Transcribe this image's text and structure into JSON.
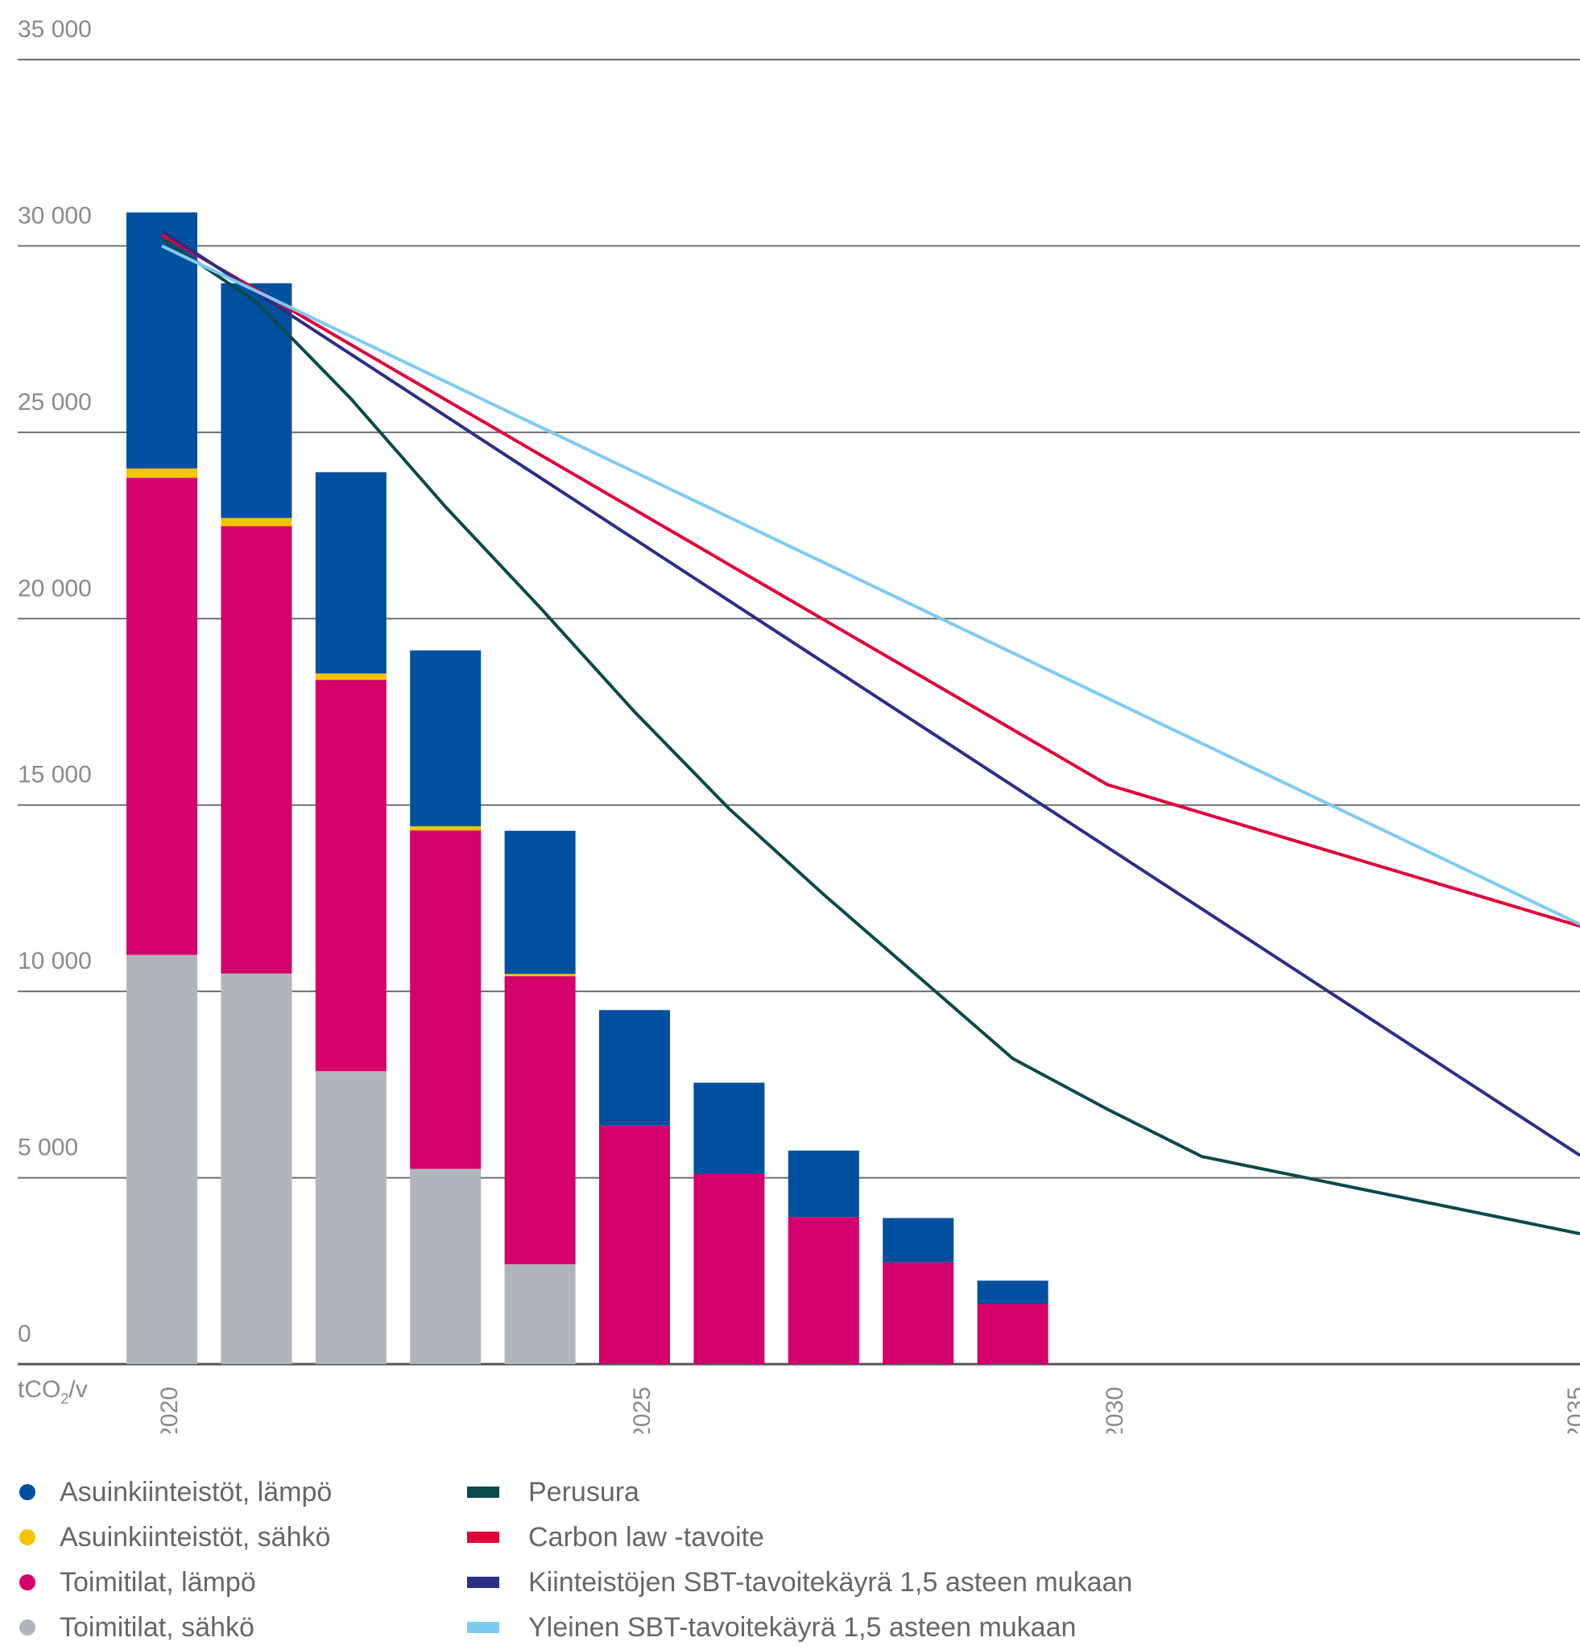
{
  "chart_data": {
    "type": "bar",
    "stacked": true,
    "ylabel": "tCO",
    "ylabel_subscript": "2",
    "ylabel_suffix": "/v",
    "ylim": [
      0,
      35000
    ],
    "y_ticks": [
      0,
      5000,
      10000,
      15000,
      20000,
      25000,
      30000,
      35000
    ],
    "y_tick_labels": [
      "0",
      "5 000",
      "10 000",
      "15 000",
      "20 000",
      "25 000",
      "30 000",
      "35 000"
    ],
    "xlim": [
      2020,
      2035
    ],
    "x_ticks": [
      2020,
      2025,
      2030,
      2035
    ],
    "x_tick_labels": [
      "2020",
      "2025",
      "2030",
      "2035"
    ],
    "grid": true,
    "categories": [
      2020,
      2021,
      2022,
      2023,
      2024,
      2025,
      2026,
      2027,
      2028,
      2029
    ],
    "series": [
      {
        "name": "Toimitilat, sähkö",
        "color": "#b0b5bb",
        "values": [
          10980,
          10480,
          7860,
          5240,
          2680,
          0,
          0,
          0,
          0,
          0
        ]
      },
      {
        "name": "Toimitilat, lämpö",
        "color": "#d4006b",
        "values": [
          12800,
          12000,
          10500,
          9080,
          7730,
          6400,
          5100,
          3950,
          2730,
          1620
        ]
      },
      {
        "name": "Asuinkiinteistöt, sähkö",
        "color": "#f5c400",
        "values": [
          250,
          220,
          170,
          110,
          60,
          0,
          0,
          0,
          0,
          0
        ]
      },
      {
        "name": "Asuinkiinteistöt, lämpö",
        "color": "#0050a0",
        "values": [
          6870,
          6300,
          5400,
          4720,
          3840,
          3100,
          2450,
          1780,
          1190,
          620
        ]
      }
    ],
    "lines": [
      {
        "name": "Perusura",
        "color": "#0a4a4a",
        "x": [
          2020,
          2021,
          2022,
          2023,
          2024,
          2025,
          2026,
          2027,
          2028,
          2029,
          2030,
          2031,
          2035
        ],
        "y": [
          30200,
          28500,
          25900,
          23000,
          20300,
          17500,
          14900,
          12600,
          10400,
          8200,
          6840,
          5570,
          3500
        ]
      },
      {
        "name": "Carbon law -tavoite",
        "color": "#e0003a",
        "x": [
          2020,
          2030,
          2035
        ],
        "y": [
          30300,
          15550,
          11750
        ]
      },
      {
        "name": "Kiinteistöjen SBT-tavoitekäyrä 1,5 asteen mukaan",
        "color": "#2b2f86",
        "x": [
          2020,
          2035
        ],
        "y": [
          30400,
          5600
        ]
      },
      {
        "name": "Yleinen SBT-tavoitekäyrä 1,5 asteen mukaan",
        "color": "#7ecbf0",
        "x": [
          2020,
          2035
        ],
        "y": [
          30000,
          11800
        ]
      }
    ]
  }
}
